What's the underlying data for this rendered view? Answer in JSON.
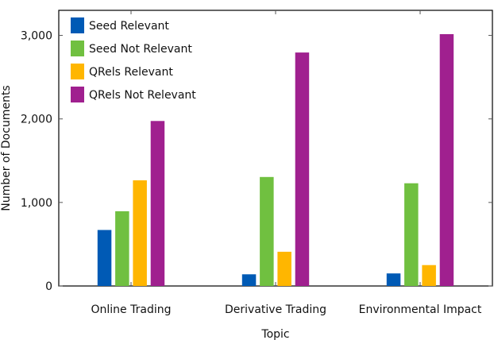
{
  "chart_data": {
    "type": "bar",
    "title": "",
    "xlabel": "Topic",
    "ylabel": "Number of Documents",
    "categories": [
      "Online Trading",
      "Derivative Trading",
      "Environmental Impact"
    ],
    "series": [
      {
        "name": "Seed Relevant",
        "color": "#005AB5",
        "values": [
          670,
          140,
          150
        ]
      },
      {
        "name": "Seed Not Relevant",
        "color": "#70C040",
        "values": [
          895,
          1305,
          1230
        ]
      },
      {
        "name": "QRels Relevant",
        "color": "#FFB600",
        "values": [
          1265,
          410,
          250
        ]
      },
      {
        "name": "QRels Not Relevant",
        "color": "#A0208F",
        "values": [
          1975,
          2795,
          3015
        ]
      }
    ],
    "ylim": [
      0,
      3300
    ],
    "yticks": [
      0,
      1000,
      2000,
      3000
    ],
    "ytick_labels": [
      "0",
      "1,000",
      "2,000",
      "3,000"
    ],
    "legend_position": "top-left",
    "grid": false
  }
}
